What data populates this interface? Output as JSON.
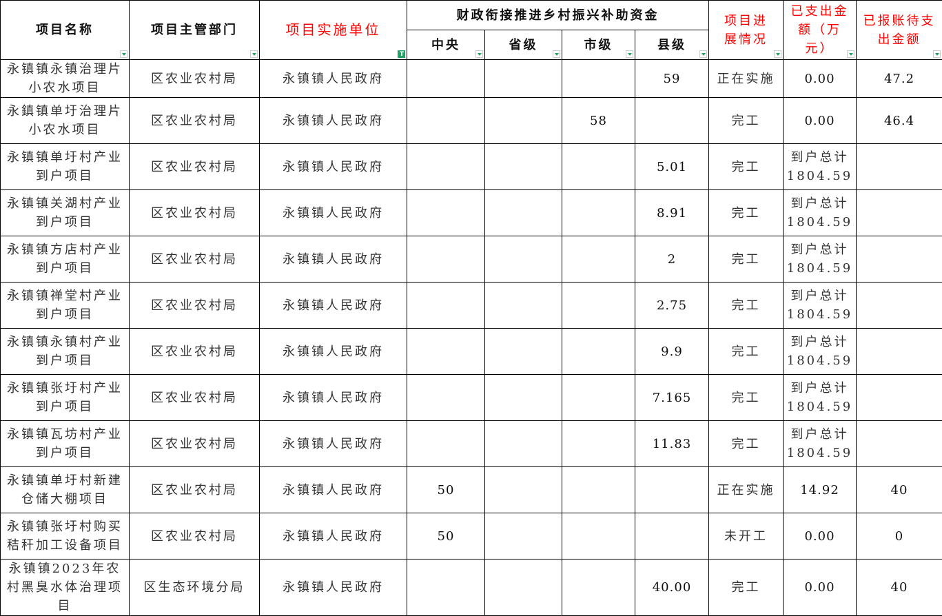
{
  "colors": {
    "header_red": "#ff0000",
    "filter_green": "#1fa463"
  },
  "headers": {
    "name": "项目名称",
    "dept": "项目主管部门",
    "unit": "项目实施单位",
    "fund_group": "财政衔接推进乡村振兴补助资金",
    "central": "中央",
    "province": "省级",
    "city": "市级",
    "county": "县级",
    "progress": "项目进展情况",
    "spent": "已支出金额（万元）",
    "pending": "已报账待支出金额"
  },
  "rows": [
    {
      "name": "永镇镇永镇治理片小农水项目",
      "dept": "区农业农村局",
      "unit": "永镇镇人民政府",
      "central": "",
      "province": "",
      "city": "",
      "county": "59",
      "progress": "正在实施",
      "spent": "0.00",
      "pending": "47.2"
    },
    {
      "name": "永鎮镇单圩治理片小农水项目",
      "dept": "区农业农村局",
      "unit": "永镇镇人民政府",
      "central": "",
      "province": "",
      "city": "58",
      "county": "",
      "progress": "完工",
      "spent": "0.00",
      "pending": "46.4"
    },
    {
      "name": "永镇镇单圩村产业到户项目",
      "dept": "区农业农村局",
      "unit": "永镇镇人民政府",
      "central": "",
      "province": "",
      "city": "",
      "county": "5.01",
      "progress": "完工",
      "spent": "到户总计1804.59",
      "pending": ""
    },
    {
      "name": "永镇镇关湖村产业到户项目",
      "dept": "区农业农村局",
      "unit": "永镇镇人民政府",
      "central": "",
      "province": "",
      "city": "",
      "county": "8.91",
      "progress": "完工",
      "spent": "到户总计1804.59",
      "pending": ""
    },
    {
      "name": "永镇镇方店村产业到户项目",
      "dept": "区农业农村局",
      "unit": "永镇镇人民政府",
      "central": "",
      "province": "",
      "city": "",
      "county": "2",
      "progress": "完工",
      "spent": "到户总计1804.59",
      "pending": ""
    },
    {
      "name": "永镇镇禅堂村产业到户项目",
      "dept": "区农业农村局",
      "unit": "永镇镇人民政府",
      "central": "",
      "province": "",
      "city": "",
      "county": "2.75",
      "progress": "完工",
      "spent": "到户总计1804.59",
      "pending": ""
    },
    {
      "name": "永镇镇永镇村产业到户项目",
      "dept": "区农业农村局",
      "unit": "永镇镇人民政府",
      "central": "",
      "province": "",
      "city": "",
      "county": "9.9",
      "progress": "完工",
      "spent": "到户总计1804.59",
      "pending": ""
    },
    {
      "name": "永镇镇张圩村产业到户项目",
      "dept": "区农业农村局",
      "unit": "永镇镇人民政府",
      "central": "",
      "province": "",
      "city": "",
      "county": "7.165",
      "progress": "完工",
      "spent": "到户总计1804.59",
      "pending": ""
    },
    {
      "name": "永镇镇瓦坊村产业到户项目",
      "dept": "区农业农村局",
      "unit": "永镇镇人民政府",
      "central": "",
      "province": "",
      "city": "",
      "county": "11.83",
      "progress": "完工",
      "spent": "到户总计1804.59",
      "pending": ""
    },
    {
      "name": "永镇镇单圩村新建仓储大棚项目",
      "dept": "区农业农村局",
      "unit": "永镇镇人民政府",
      "central": "50",
      "province": "",
      "city": "",
      "county": "",
      "progress": "正在实施",
      "spent": "14.92",
      "pending": "40"
    },
    {
      "name": "永镇镇张圩村购买秸秆加工设备项目",
      "dept": "区农业农村局",
      "unit": "永镇镇人民政府",
      "central": "50",
      "province": "",
      "city": "",
      "county": "",
      "progress": "未开工",
      "spent": "0.00",
      "pending": "0"
    },
    {
      "name": "永镇镇2023年农村黑臭水体治理项目",
      "dept": "区生态环境分局",
      "unit": "永镇镇人民政府",
      "central": "",
      "province": "",
      "city": "",
      "county": "40.00",
      "progress": "完工",
      "spent": "0.00",
      "pending": "40"
    }
  ]
}
